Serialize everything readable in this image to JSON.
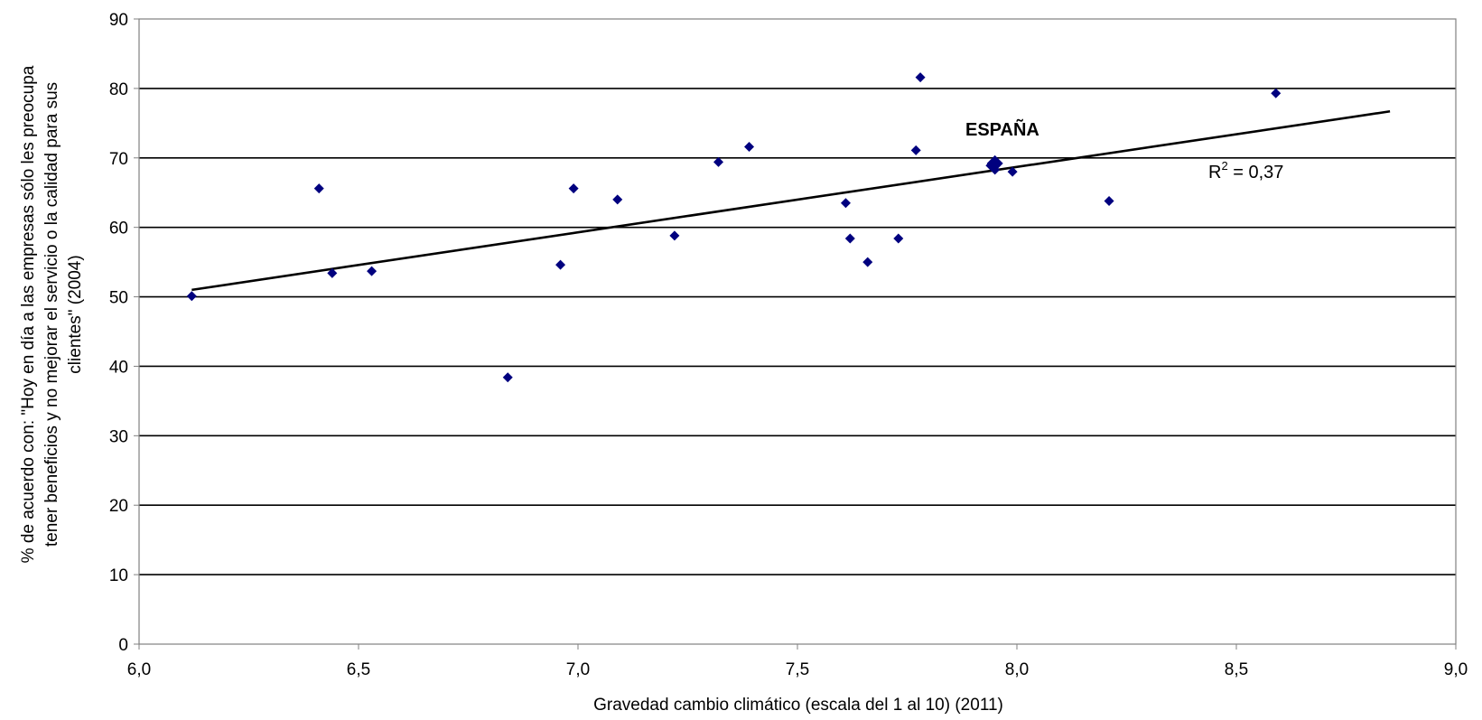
{
  "chart_data": {
    "type": "scatter",
    "title": "",
    "xlabel": "Gravedad cambio climático (escala del 1 al 10) (2011)",
    "ylabel_lines": [
      "% de acuerdo con: \"Hoy en día a las empresas sólo les preocupa",
      "tener beneficios y no mejorar el servicio o la calidad para sus",
      "clientes\" (2004)"
    ],
    "xlim": [
      6.0,
      9.0
    ],
    "ylim": [
      0,
      90
    ],
    "x_ticks": [
      "6,0",
      "6,5",
      "7,0",
      "7,5",
      "8,0",
      "8,5",
      "9,0"
    ],
    "y_ticks": [
      "0",
      "10",
      "20",
      "30",
      "40",
      "50",
      "60",
      "70",
      "80",
      "90"
    ],
    "grid": "horizontal",
    "marker_color": "#00007F",
    "trendline_color": "#000000",
    "series": [
      {
        "points": [
          {
            "x": 6.12,
            "y": 50.1
          },
          {
            "x": 6.41,
            "y": 65.6
          },
          {
            "x": 6.44,
            "y": 53.4
          },
          {
            "x": 6.53,
            "y": 53.7
          },
          {
            "x": 6.84,
            "y": 38.4
          },
          {
            "x": 6.96,
            "y": 54.6
          },
          {
            "x": 6.99,
            "y": 65.6
          },
          {
            "x": 7.09,
            "y": 64.0
          },
          {
            "x": 7.22,
            "y": 58.8
          },
          {
            "x": 7.32,
            "y": 69.4
          },
          {
            "x": 7.39,
            "y": 71.6
          },
          {
            "x": 7.61,
            "y": 63.5
          },
          {
            "x": 7.62,
            "y": 58.4
          },
          {
            "x": 7.66,
            "y": 55.0
          },
          {
            "x": 7.73,
            "y": 58.4
          },
          {
            "x": 7.77,
            "y": 71.1
          },
          {
            "x": 7.78,
            "y": 81.6
          },
          {
            "x": 7.94,
            "y": 68.9
          },
          {
            "x": 7.95,
            "y": 68.3
          },
          {
            "x": 7.99,
            "y": 68.0
          },
          {
            "x": 8.21,
            "y": 63.8
          },
          {
            "x": 8.59,
            "y": 79.3
          }
        ],
        "highlight": {
          "x": 7.95,
          "y": 69.2
        }
      }
    ],
    "trendline": {
      "x": [
        6.12,
        8.85
      ],
      "y": [
        51.0,
        76.7
      ]
    },
    "annotations": {
      "highlight_label": "ESPAÑA",
      "r2_prefix": "R",
      "r2_sup": "2",
      "r2_value": " = 0,37"
    }
  }
}
